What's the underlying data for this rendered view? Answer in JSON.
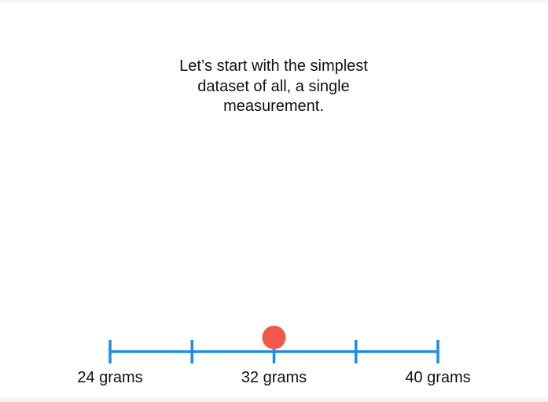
{
  "caption": "Let’s start with the simplest\ndataset of all, a single\nmeasurement.",
  "number_line": {
    "min": 24,
    "max": 40,
    "ticks": [
      24,
      28,
      32,
      36,
      40
    ],
    "labels": [
      {
        "value": 24,
        "text": "24 grams"
      },
      {
        "value": 32,
        "text": "32 grams"
      },
      {
        "value": 40,
        "text": "40 grams"
      }
    ],
    "measurement": 32,
    "line_color": "#1a8de6",
    "point_color": "#f2574b"
  }
}
